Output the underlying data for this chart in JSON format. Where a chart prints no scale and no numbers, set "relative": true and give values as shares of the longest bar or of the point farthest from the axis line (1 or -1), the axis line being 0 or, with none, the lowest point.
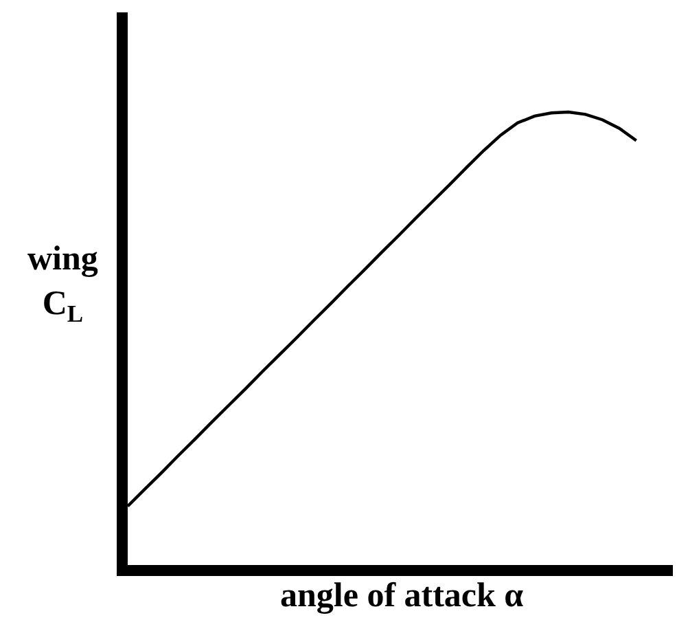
{
  "chart_data": {
    "type": "line",
    "xlabel": "angle of attack α",
    "ylabel": "wing\nC$_{L}$",
    "relative": true,
    "categories": [
      null,
      null,
      null,
      null,
      null,
      null,
      null,
      null,
      null,
      null,
      null,
      null,
      null,
      null,
      null,
      null,
      null,
      null,
      null,
      null,
      null,
      null,
      null,
      null,
      null,
      null,
      null,
      null,
      null,
      null,
      null
    ],
    "series": [
      {
        "color": "#000000",
        "values": [
          0.13,
          0.167,
          0.204,
          0.242,
          0.279,
          0.317,
          0.354,
          0.391,
          0.429,
          0.466,
          0.503,
          0.541,
          0.578,
          0.616,
          0.653,
          0.691,
          0.728,
          0.766,
          0.803,
          0.84,
          0.878,
          0.915,
          0.949,
          0.976,
          0.991,
          0.998,
          1.0,
          0.995,
          0.983,
          0.964,
          0.937
        ]
      }
    ]
  }
}
